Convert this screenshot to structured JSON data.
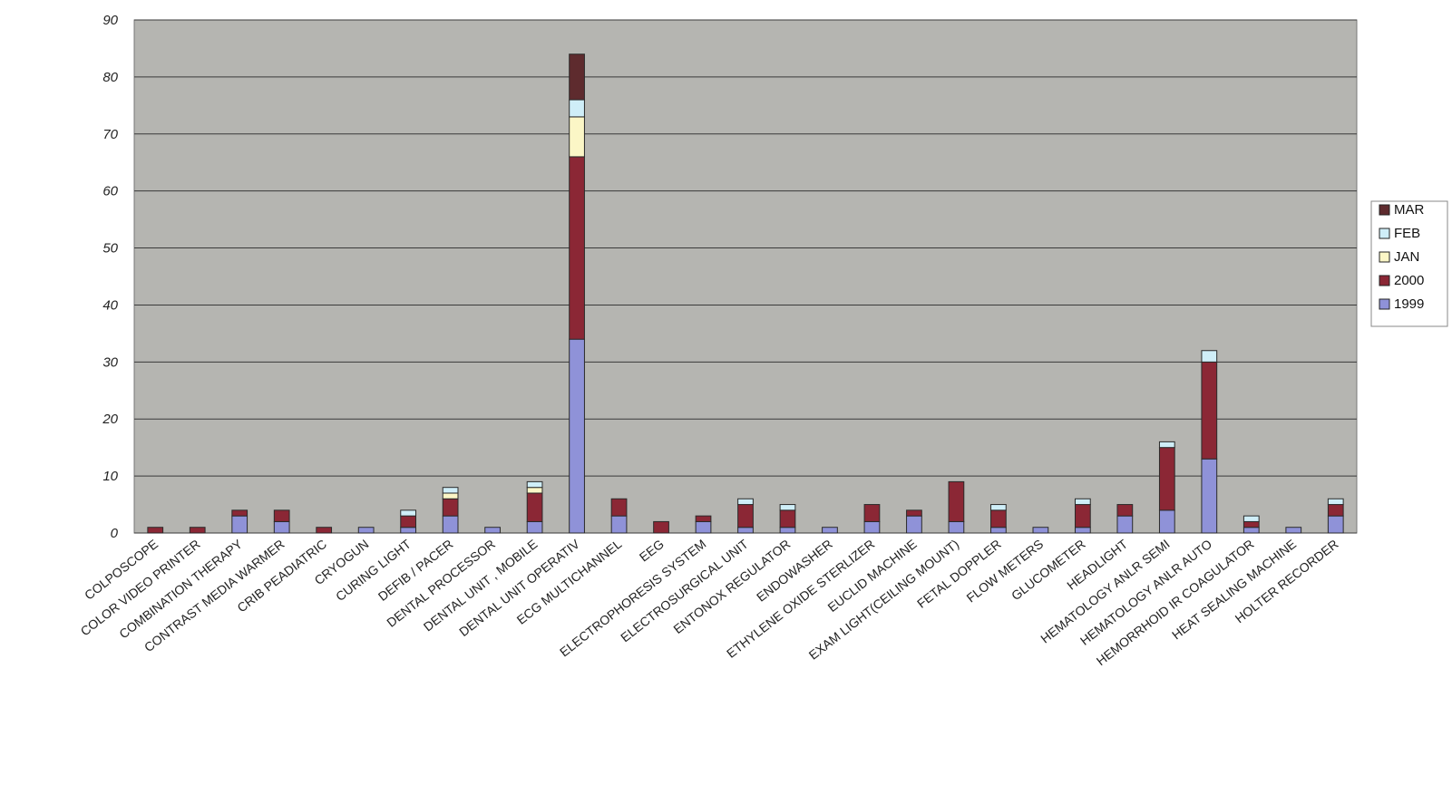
{
  "chart_data": {
    "type": "bar",
    "stacked": true,
    "title": "",
    "xlabel": "",
    "ylabel": "",
    "ylim": [
      0,
      90
    ],
    "yticks": [
      0,
      10,
      20,
      30,
      40,
      50,
      60,
      70,
      80,
      90
    ],
    "grid": true,
    "legend_position": "right",
    "categories": [
      "COLPOSCOPE",
      "COLOR VIDEO PRINTER",
      "COMBINATION THERAPY",
      "CONTRAST MEDIA WARMER",
      "CRIB PEADIATRIC",
      "CRYOGUN",
      "CURING LIGHT",
      "DEFIB / PACER",
      "DENTAL PROCESSOR",
      "DENTAL UNIT , MOBILE",
      "DENTAL UNIT OPERATIV",
      "ECG MULTICHANNEL",
      "EEG",
      "ELECTROPHORESIS SYSTEM",
      "ELECTROSURGICAL UNIT",
      "ENTONOX REGULATOR",
      "ENDOWASHER",
      "ETHYLENE OXIDE STERLIZER",
      "EUCLID MACHINE",
      "EXAM LIGHT(CEILING MOUNT)",
      "FETAL DOPPLER",
      "FLOW METERS",
      "GLUCOMETER",
      "HEADLIGHT",
      "HEMATOLOGY ANLR SEMI",
      "HEMATOLOGY ANLR AUTO",
      "HEMORRHOID IR COAGULATOR",
      "HEAT SEALING MACHINE",
      "HOLTER RECORDER"
    ],
    "series": [
      {
        "name": "1999",
        "color": "#8f92d8",
        "values": [
          0,
          0,
          3,
          2,
          0,
          1,
          1,
          3,
          1,
          2,
          34,
          3,
          0,
          2,
          1,
          1,
          1,
          2,
          3,
          2,
          1,
          1,
          1,
          3,
          4,
          13,
          1,
          1,
          3
        ]
      },
      {
        "name": "2000",
        "color": "#8b2735",
        "values": [
          1,
          1,
          1,
          2,
          1,
          0,
          2,
          3,
          0,
          5,
          32,
          3,
          2,
          1,
          4,
          3,
          0,
          3,
          1,
          7,
          3,
          0,
          4,
          2,
          11,
          17,
          1,
          0,
          2
        ]
      },
      {
        "name": "JAN",
        "color": "#fbf6c6",
        "values": [
          0,
          0,
          0,
          0,
          0,
          0,
          0,
          1,
          0,
          1,
          7,
          0,
          0,
          0,
          0,
          0,
          0,
          0,
          0,
          0,
          0,
          0,
          0,
          0,
          0,
          0,
          0,
          0,
          0
        ]
      },
      {
        "name": "FEB",
        "color": "#cfeef8",
        "values": [
          0,
          0,
          0,
          0,
          0,
          0,
          1,
          1,
          0,
          1,
          3,
          0,
          0,
          0,
          1,
          1,
          0,
          0,
          0,
          0,
          1,
          0,
          1,
          0,
          1,
          2,
          1,
          0,
          1
        ]
      },
      {
        "name": "MAR",
        "color": "#5e2b2e",
        "values": [
          0,
          0,
          0,
          0,
          0,
          0,
          0,
          0,
          0,
          0,
          8,
          0,
          0,
          0,
          0,
          0,
          0,
          0,
          0,
          0,
          0,
          0,
          0,
          0,
          0,
          0,
          0,
          0,
          0
        ]
      }
    ],
    "legend_order": [
      "MAR",
      "FEB",
      "JAN",
      "2000",
      "1999"
    ]
  },
  "colors": {
    "plot_background": "#b5b5b1",
    "gridline": "#3a3a3a",
    "axis": "#555555"
  }
}
